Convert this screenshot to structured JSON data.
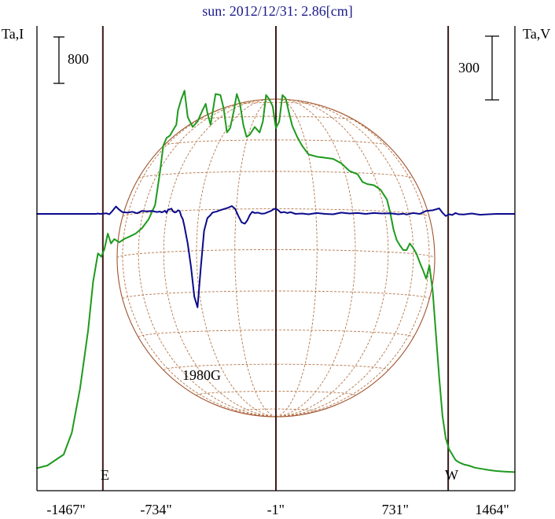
{
  "chart_data": {
    "type": "line",
    "title": "sun: 2012/12/31: 2.86[cm]",
    "left_axis_label": "Ta,I",
    "right_axis_label": "Ta,V",
    "left_scale_bar": "800",
    "right_scale_bar": "300",
    "x_tick_labels": [
      "-1467\"",
      "-734\"",
      "-1\"",
      "731\"",
      "1464\""
    ],
    "x_ticks_arcsec": [
      -1467,
      -734,
      -1,
      731,
      1464
    ],
    "xlim": [
      -1467,
      1464
    ],
    "limb_labels": {
      "east": "E",
      "west": "W"
    },
    "limb_positions_arcsec": [
      -1060,
      1055
    ],
    "annotation": {
      "text": "1980G",
      "x": -370
    },
    "colors": {
      "title": "#1a1a8c",
      "intensity": "#1e9a1e",
      "polarization": "#0a0a8c",
      "disk": "#a0522d",
      "grid": "#b5764a",
      "limb_lines": "#3a1a1a",
      "axes": "#000000"
    },
    "series": [
      {
        "name": "I",
        "axis": "left",
        "x": [
          -1467,
          -1400,
          -1300,
          -1250,
          -1200,
          -1150,
          -1120,
          -1090,
          -1070,
          -1050,
          -1030,
          -1010,
          -990,
          -960,
          -930,
          -900,
          -860,
          -820,
          -780,
          -740,
          -710,
          -690,
          -670,
          -650,
          -630,
          -610,
          -600,
          -580,
          -560,
          -540,
          -510,
          -480,
          -450,
          -430,
          -420,
          -400,
          -370,
          -340,
          -320,
          -300,
          -280,
          -260,
          -240,
          -220,
          -200,
          -180,
          -160,
          -130,
          -100,
          -80,
          -60,
          -40,
          -20,
          0,
          20,
          40,
          60,
          80,
          100,
          130,
          160,
          200,
          250,
          300,
          350,
          400,
          450,
          500,
          530,
          560,
          600,
          640,
          680,
          700,
          720,
          740,
          760,
          780,
          800,
          820,
          840,
          860,
          880,
          900,
          920,
          940,
          960,
          980,
          1000,
          1020,
          1040,
          1060,
          1080,
          1100,
          1120,
          1150,
          1180,
          1220,
          1260,
          1300,
          1350,
          1400,
          1464
        ],
        "y": [
          125,
          150,
          250,
          450,
          850,
          1380,
          1820,
          2080,
          2050,
          2120,
          2260,
          2170,
          2210,
          2180,
          2210,
          2230,
          2260,
          2310,
          2390,
          2520,
          2820,
          3060,
          3130,
          3150,
          3200,
          3250,
          3380,
          3480,
          3560,
          3320,
          3230,
          3280,
          3380,
          3440,
          3360,
          3250,
          3530,
          3520,
          3400,
          3180,
          3220,
          3360,
          3530,
          3440,
          3250,
          3140,
          3160,
          3230,
          3180,
          3280,
          3520,
          3480,
          3420,
          3220,
          3280,
          3520,
          3490,
          3360,
          3240,
          3140,
          3060,
          2980,
          2960,
          2950,
          2940,
          2900,
          2830,
          2800,
          2730,
          2710,
          2700,
          2660,
          2570,
          2450,
          2300,
          2200,
          2150,
          2110,
          2110,
          2170,
          2130,
          2080,
          2000,
          1930,
          1850,
          1970,
          1740,
          1350,
          950,
          600,
          400,
          300,
          250,
          200,
          180,
          160,
          150,
          130,
          120,
          110,
          100,
          95,
          90
        ]
      },
      {
        "name": "V",
        "axis": "right",
        "x": [
          -1467,
          -1200,
          -1100,
          -1090,
          -1080,
          -1060,
          -1040,
          -1020,
          -1000,
          -980,
          -960,
          -940,
          -910,
          -880,
          -850,
          -820,
          -790,
          -760,
          -730,
          -710,
          -700,
          -690,
          -680,
          -670,
          -660,
          -650,
          -640,
          -630,
          -620,
          -610,
          -600,
          -590,
          -580,
          -570,
          -560,
          -540,
          -520,
          -500,
          -480,
          -460,
          -440,
          -420,
          -400,
          -390,
          -380,
          -370,
          -360,
          -350,
          -330,
          -310,
          -290,
          -270,
          -250,
          -230,
          -210,
          -190,
          -175,
          -160,
          -145,
          -130,
          -110,
          -90,
          -70,
          -50,
          -30,
          -10,
          10,
          30,
          50,
          70,
          90,
          120,
          160,
          200,
          250,
          300,
          350,
          400,
          450,
          500,
          550,
          600,
          650,
          700,
          750,
          780,
          800,
          840,
          880,
          920,
          960,
          1000,
          1020,
          1040,
          1060,
          1080,
          1100,
          1120,
          1150,
          1200,
          1250,
          1300,
          1350,
          1464
        ],
        "y": [
          0,
          0,
          0,
          2,
          0,
          1,
          3,
          -2,
          15,
          35,
          20,
          8,
          6,
          10,
          3,
          14,
          12,
          14,
          9,
          11,
          7,
          10,
          15,
          5,
          20,
          22,
          25,
          12,
          7,
          9,
          17,
          14,
          -10,
          -25,
          -60,
          -140,
          -250,
          -390,
          -440,
          -250,
          -80,
          -20,
          -5,
          5,
          8,
          10,
          12,
          15,
          20,
          25,
          30,
          37,
          24,
          -10,
          -40,
          -46,
          -30,
          -5,
          10,
          4,
          6,
          1,
          2,
          8,
          14,
          24,
          20,
          6,
          9,
          4,
          8,
          0,
          2,
          -2,
          4,
          0,
          -2,
          6,
          2,
          4,
          0,
          4,
          2,
          3,
          -2,
          1,
          -3,
          4,
          0,
          14,
          17,
          26,
          5,
          -10,
          -2,
          -5,
          4,
          -2,
          -3,
          2,
          -4,
          -2,
          0,
          0
        ]
      }
    ],
    "left_ylim": [
      0,
      3800
    ],
    "right_ylim": [
      -500,
      500
    ]
  }
}
